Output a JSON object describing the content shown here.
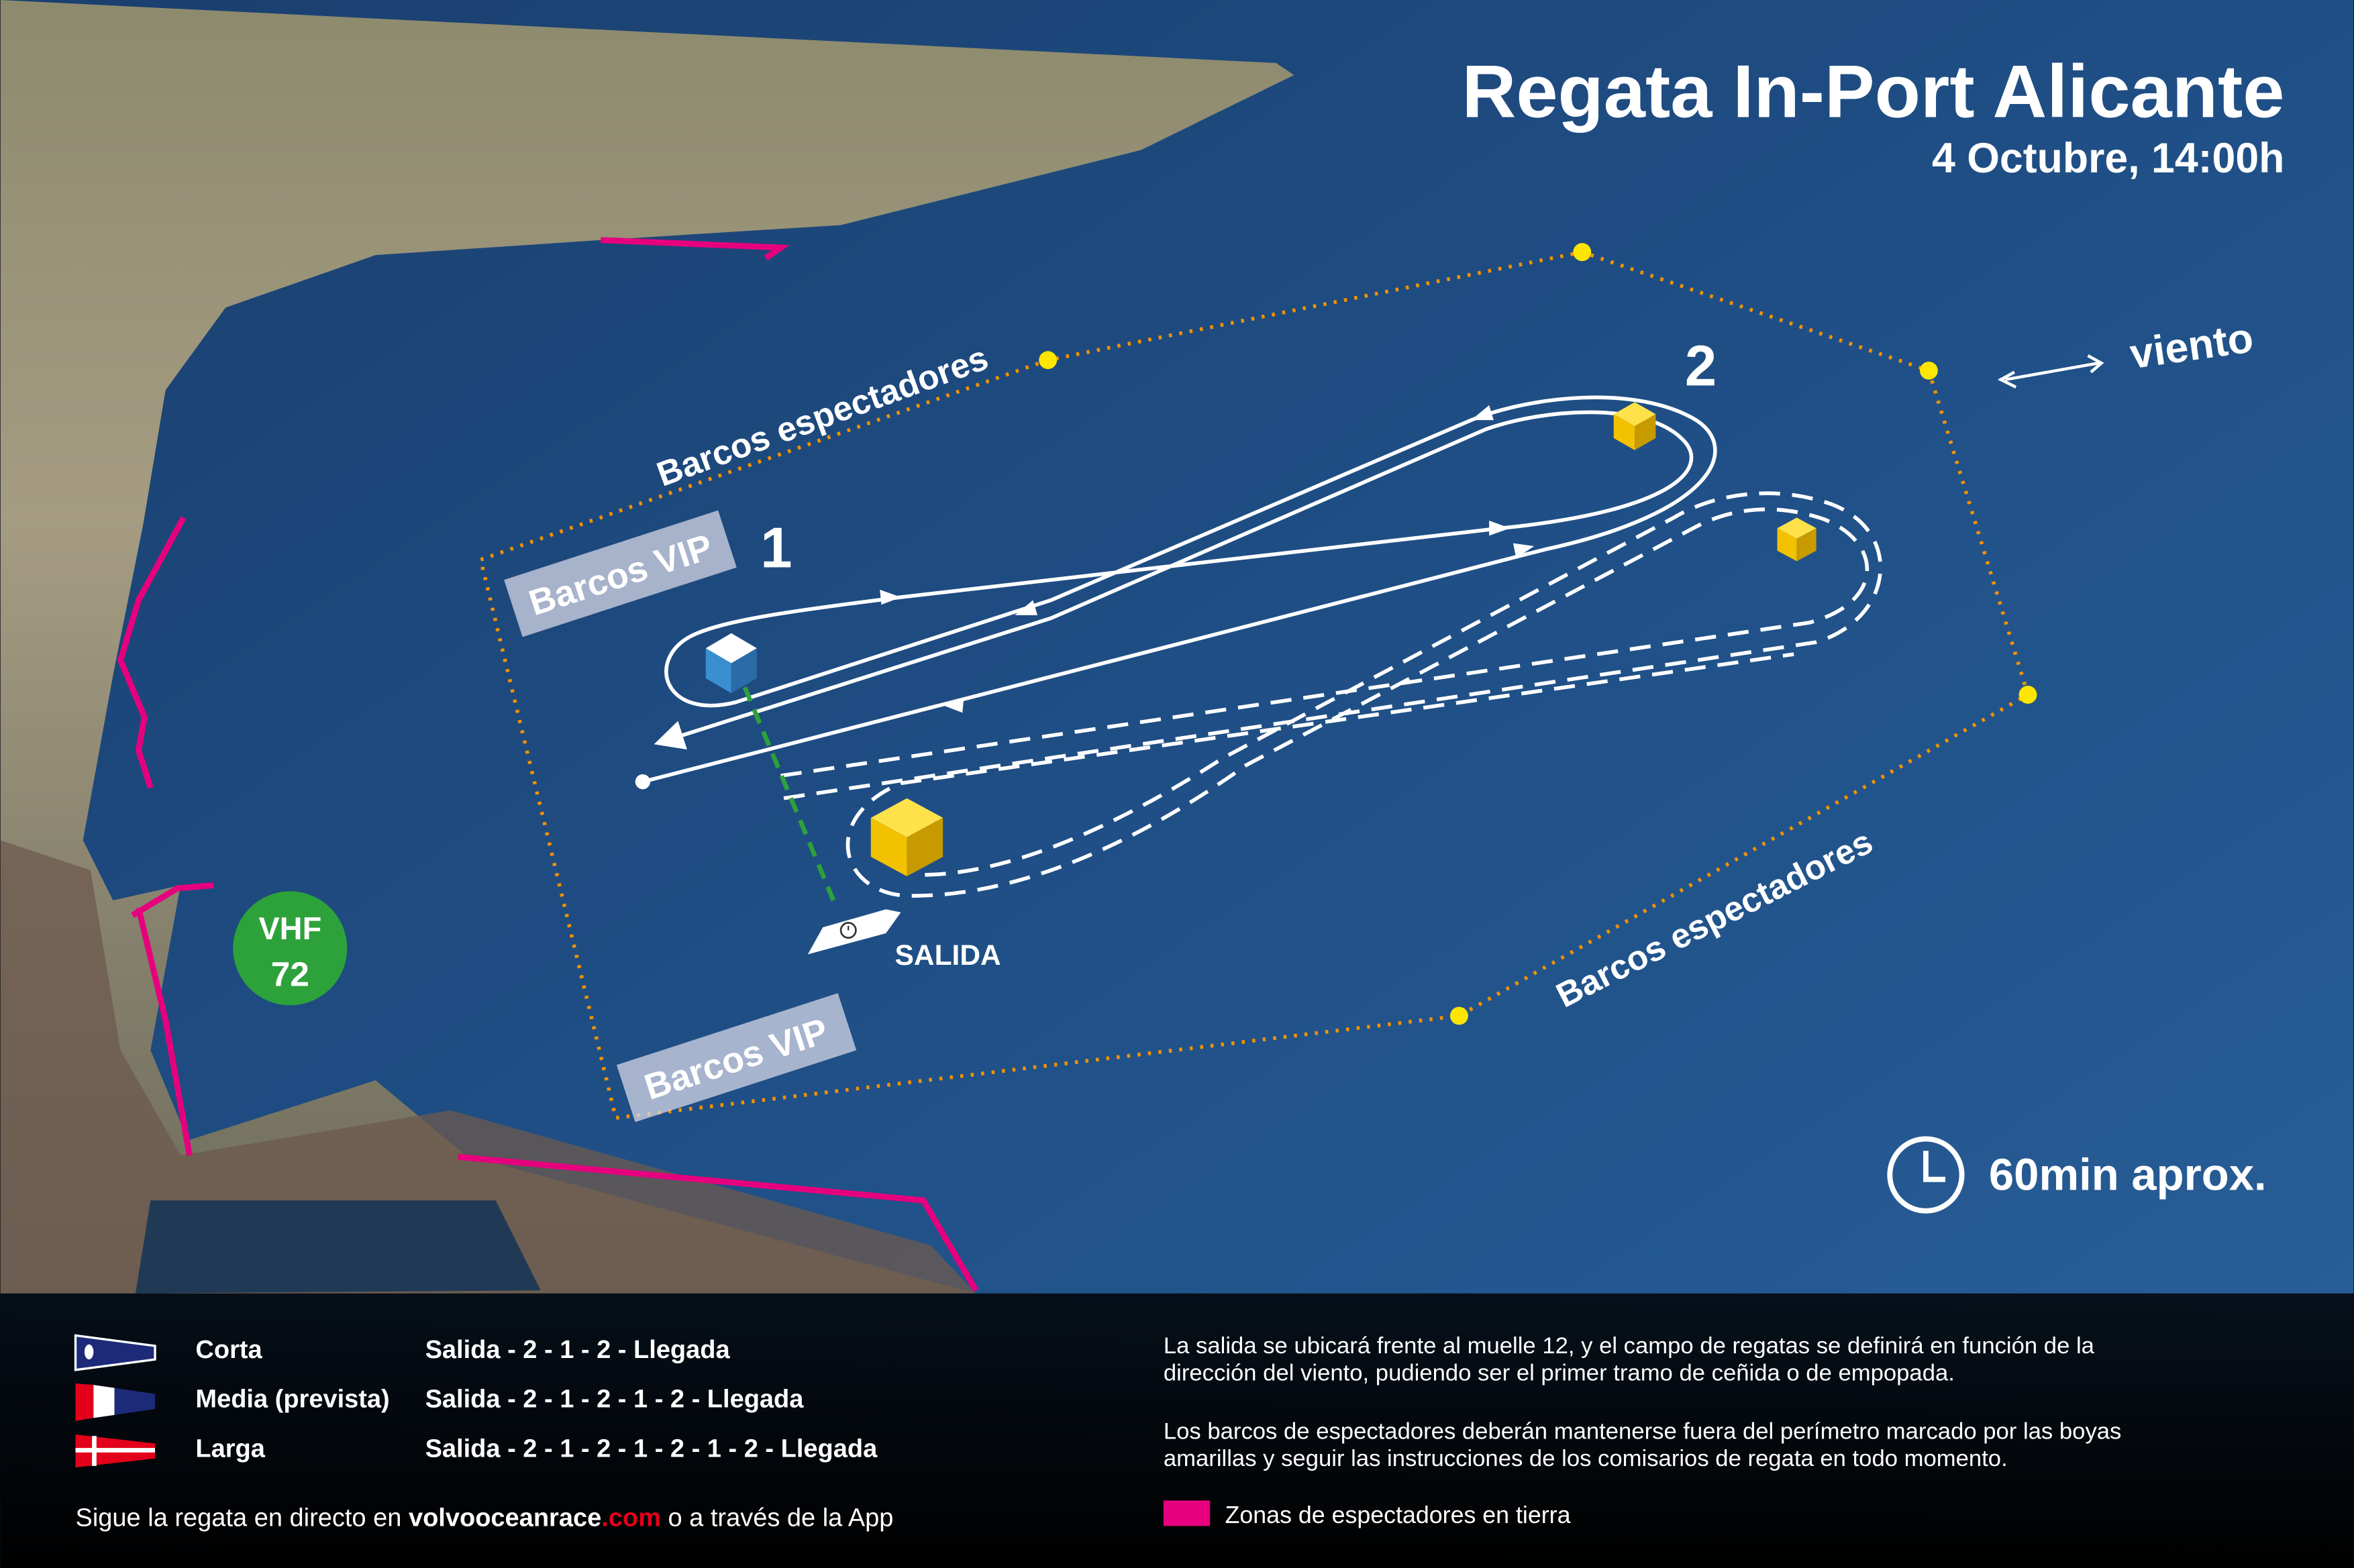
{
  "header": {
    "title": "Regata In-Port Alicante",
    "subtitle": "4 Octubre, 14:00h"
  },
  "map": {
    "wind_label": "viento",
    "mark_1": "1",
    "mark_2": "2",
    "vip_label_top": "Barcos VIP",
    "vip_label_bottom": "Barcos VIP",
    "spectators_label_top": "Barcos espectadores",
    "spectators_label_bottom": "Barcos espectadores",
    "start_label": "SALIDA",
    "vhf": {
      "line1": "VHF",
      "line2": "72"
    },
    "duration": "60min aprox.",
    "icons": [
      "clock-icon",
      "boat-icon",
      "double-arrow-icon"
    ]
  },
  "legend": {
    "courses": [
      {
        "name": "Corta",
        "route": "Salida - 2 - 1 - 2 - Llegada",
        "flag": "blue-pennant-white-dot"
      },
      {
        "name": "Media (prevista)",
        "route": "Salida - 2 - 1 - 2 - 1 - 2 - Llegada",
        "flag": "red-white-blue-pennant"
      },
      {
        "name": "Larga",
        "route": "Salida - 2 - 1 - 2 - 1 - 2 - 1 - 2 - Llegada",
        "flag": "red-pennant-white-cross"
      }
    ],
    "follow": {
      "prefix": "Sigue la regata en directo en ",
      "site": "volvooceanrace",
      "tld": ".com",
      "suffix": " o a través de la App"
    },
    "info_1": {
      "line1": "La salida se ubicará frente al muelle 12, y el campo de regatas se definirá en función de la",
      "line2": "dirección del viento, pudiendo ser el primer tramo de ceñida o de empopada."
    },
    "info_2": {
      "line1": "Los barcos de espectadores deberán mantenerse fuera del perímetro marcado por las boyas",
      "line2": "amarillas y seguir las instrucciones de los comisarios de regata en todo momento."
    },
    "land_zones_label": "Zonas de espectadores en tierra"
  },
  "colors": {
    "sea": "#1f4f86",
    "spectator_zone": "#e6007e",
    "perimeter_buoy": "#ffe600",
    "perimeter_line": "#f39200",
    "vhf_badge": "#2ea23a",
    "link_accent": "#e3001b",
    "mark": "#f2c200"
  }
}
